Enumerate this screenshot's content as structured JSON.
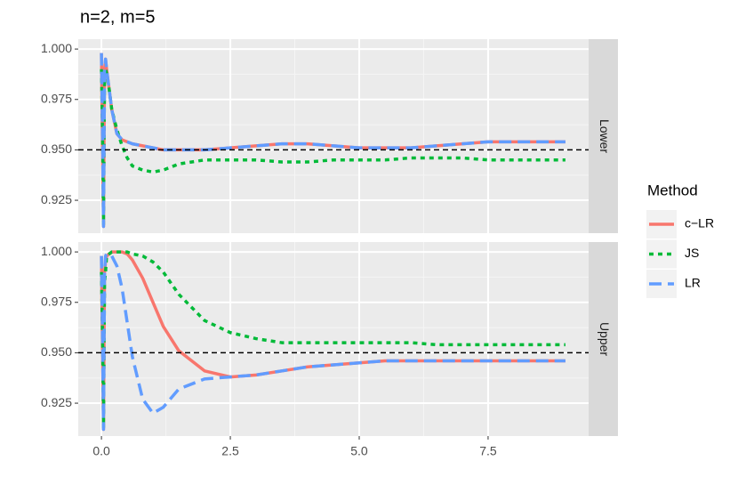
{
  "chart_data": {
    "type": "line",
    "title": "n=2, m=5",
    "legend_title": "Method",
    "x": [
      0,
      0.02,
      0.04,
      0.06,
      0.08,
      0.1,
      0.15,
      0.2,
      0.3,
      0.4,
      0.5,
      0.6,
      0.8,
      1.0,
      1.2,
      1.5,
      2,
      2.5,
      3,
      3.5,
      4,
      4.5,
      5,
      5.5,
      6,
      6.5,
      7,
      7.5,
      8,
      8.5,
      9
    ],
    "xlim": [
      -0.45,
      9.45
    ],
    "xticks": [
      {
        "value": 0,
        "label": "0.0"
      },
      2.5,
      {
        "value": 5,
        "label": "5.0"
      },
      7.5
    ],
    "ylim": [
      0.9087,
      1.0049
    ],
    "yticks": [
      {
        "value": 1.0,
        "label": "1.000"
      },
      {
        "value": 0.975,
        "label": "0.975"
      },
      {
        "value": 0.95,
        "label": "0.950"
      },
      {
        "value": 0.925,
        "label": "0.925"
      }
    ],
    "hline": 0.95,
    "grid": true,
    "legend": "right",
    "panels": [
      {
        "label": "Lower",
        "series": [
          {
            "name": "c−LR",
            "color": "#f8766d",
            "linetype": "solid",
            "values": [
              0.998,
              0.95,
              0.912,
              0.99,
              0.995,
              0.99,
              0.98,
              0.97,
              0.958,
              0.955,
              0.954,
              0.953,
              0.952,
              0.951,
              0.95,
              0.95,
              0.95,
              0.951,
              0.952,
              0.953,
              0.953,
              0.952,
              0.951,
              0.951,
              0.951,
              0.952,
              0.953,
              0.954,
              0.954,
              0.954,
              0.954
            ]
          },
          {
            "name": "JS",
            "color": "#00ba38",
            "linetype": "dotted",
            "values": [
              0.99,
              0.96,
              0.913,
              0.985,
              0.99,
              0.988,
              0.98,
              0.97,
              0.96,
              0.952,
              0.946,
              0.942,
              0.94,
              0.939,
              0.94,
              0.943,
              0.945,
              0.945,
              0.945,
              0.944,
              0.944,
              0.945,
              0.945,
              0.945,
              0.946,
              0.946,
              0.946,
              0.945,
              0.945,
              0.945,
              0.945
            ]
          },
          {
            "name": "LR",
            "color": "#619cff",
            "linetype": "dashed",
            "values": [
              0.998,
              0.96,
              0.912,
              0.99,
              0.995,
              0.99,
              0.98,
              0.97,
              0.958,
              0.955,
              0.954,
              0.953,
              0.952,
              0.951,
              0.95,
              0.95,
              0.95,
              0.951,
              0.952,
              0.953,
              0.953,
              0.952,
              0.951,
              0.951,
              0.951,
              0.952,
              0.953,
              0.954,
              0.954,
              0.954,
              0.954
            ]
          }
        ]
      },
      {
        "label": "Upper",
        "series": [
          {
            "name": "c−LR",
            "color": "#f8766d",
            "linetype": "solid",
            "values": [
              0.998,
              0.95,
              0.912,
              0.99,
              0.995,
              0.998,
              0.999,
              1.0,
              1.0,
              1.0,
              0.999,
              0.996,
              0.987,
              0.975,
              0.963,
              0.951,
              0.941,
              0.938,
              0.939,
              0.941,
              0.943,
              0.944,
              0.945,
              0.946,
              0.946,
              0.946,
              0.946,
              0.946,
              0.946,
              0.946,
              0.946
            ]
          },
          {
            "name": "JS",
            "color": "#00ba38",
            "linetype": "dotted",
            "values": [
              0.99,
              0.96,
              0.913,
              0.985,
              0.99,
              0.998,
              0.999,
              1.0,
              1.0,
              1.0,
              1.0,
              0.999,
              0.998,
              0.995,
              0.99,
              0.979,
              0.966,
              0.96,
              0.957,
              0.955,
              0.955,
              0.955,
              0.955,
              0.955,
              0.955,
              0.954,
              0.954,
              0.954,
              0.954,
              0.954,
              0.954
            ]
          },
          {
            "name": "LR",
            "color": "#619cff",
            "linetype": "dashed",
            "values": [
              0.998,
              0.96,
              0.912,
              0.99,
              0.998,
              0.999,
              0.999,
              0.998,
              0.993,
              0.982,
              0.965,
              0.948,
              0.927,
              0.92,
              0.923,
              0.932,
              0.937,
              0.938,
              0.939,
              0.941,
              0.943,
              0.944,
              0.945,
              0.946,
              0.946,
              0.946,
              0.946,
              0.946,
              0.946,
              0.946,
              0.946
            ]
          }
        ]
      }
    ]
  }
}
